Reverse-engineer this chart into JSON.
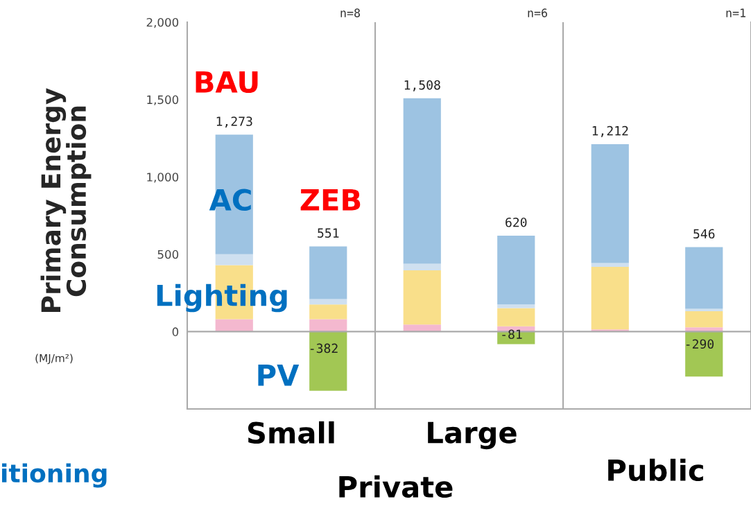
{
  "chart_data": {
    "type": "bar",
    "stacked": true,
    "categories": [
      null,
      null,
      null,
      null,
      null,
      null
    ],
    "ylabel": "Primary Energy\nConsumption",
    "ylim": [
      -500,
      2000
    ],
    "yticks": [
      0,
      500,
      {
        "value": 1000,
        "label": "1,000"
      },
      {
        "value": 1500,
        "label": "1,500"
      },
      {
        "value": 2000,
        "label": "2,000"
      }
    ],
    "tick_labels": "y",
    "grid": false,
    "legend": false,
    "ref_lines": [
      {
        "axis": "y",
        "value": 0
      }
    ],
    "series": [
      {
        "color": "#f4b8cf",
        "values": [
          80,
          80,
          45,
          34,
          14,
          28
        ]
      },
      {
        "color": "#f9df8a",
        "values": [
          350,
          95,
          351,
          118,
          405,
          104
        ]
      },
      {
        "color": "#cfe0f0",
        "values": [
          70,
          35,
          43,
          23,
          24,
          15
        ]
      },
      {
        "color": "#9dc3e2",
        "values": [
          773,
          341,
          1069,
          445,
          769,
          399
        ]
      },
      {
        "color": "#a2c754",
        "values": [
          null,
          -382,
          null,
          -81,
          null,
          -290
        ],
        "value_labels": [
          null,
          "-382",
          null,
          "-81",
          null,
          "-290"
        ]
      }
    ],
    "annotations": [
      "n=8",
      "BAU",
      "ZEB",
      "AC",
      "Lighting",
      "PV",
      "Small",
      "(MJ/m²)",
      "itioning",
      "n=6",
      "Large",
      "Private",
      "n=1",
      "Public",
      {
        "text": "1,273",
        "y": 1273
      },
      {
        "text": "551",
        "y": 551
      },
      {
        "text": "1,508",
        "y": 1508
      },
      {
        "text": "620",
        "y": 620
      },
      {
        "text": "1,212",
        "y": 1212
      },
      {
        "text": "546",
        "y": 546
      }
    ]
  }
}
